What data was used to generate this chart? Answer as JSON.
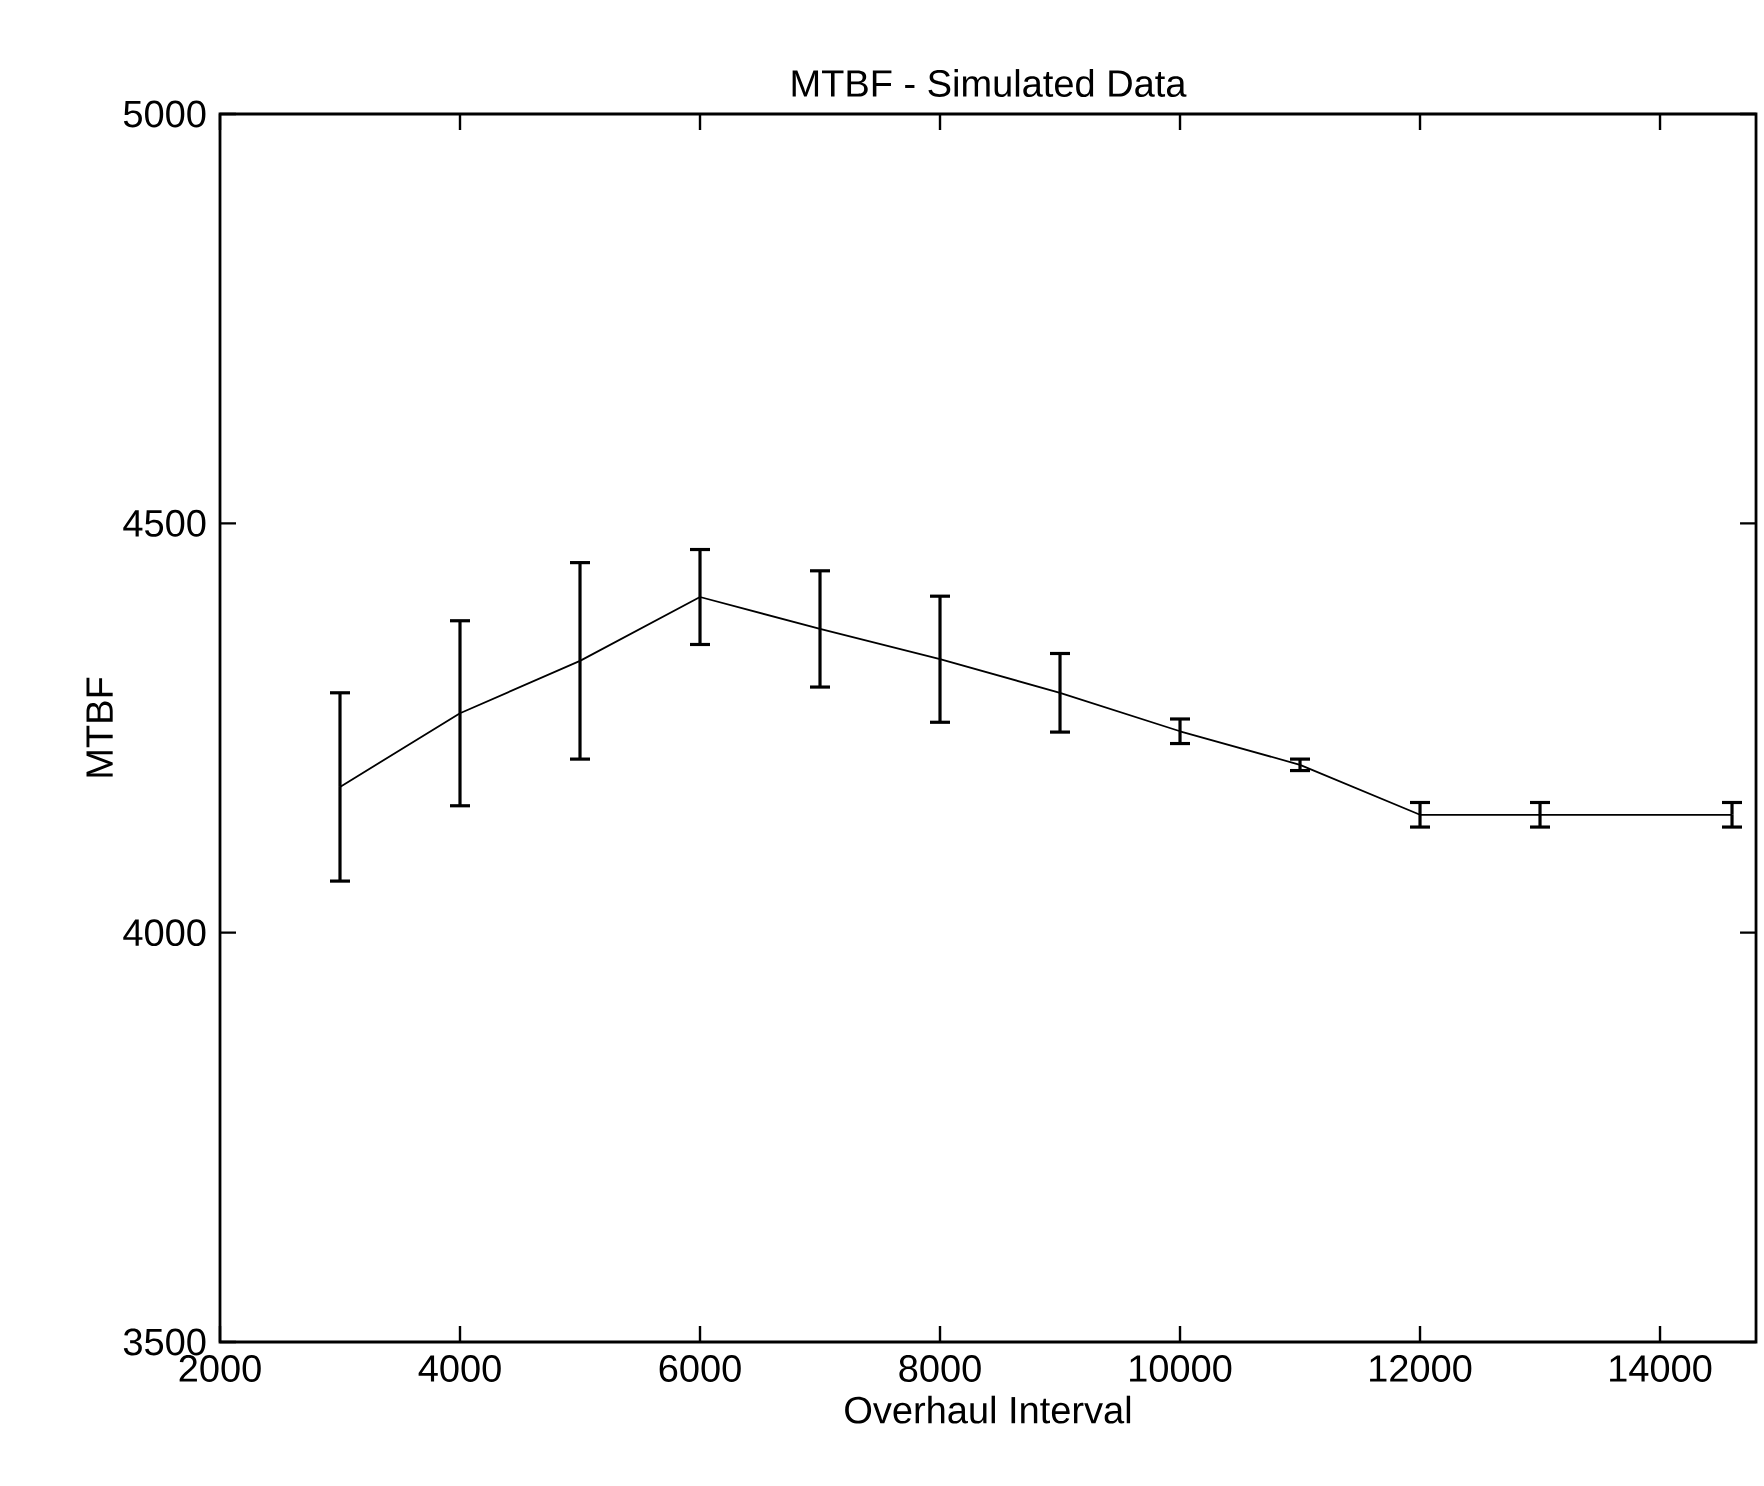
{
  "chart_data": {
    "type": "line",
    "title": "MTBF - Simulated Data",
    "xlabel": "Overhaul Interval",
    "ylabel": "MTBF",
    "x": [
      3000,
      4000,
      5000,
      6000,
      7000,
      8000,
      9000,
      10000,
      11000,
      12000,
      13000,
      14600
    ],
    "series": [
      {
        "color": "#000000",
        "values": [
          4178,
          4268,
          4332,
          4410,
          4371,
          4334,
          4293,
          4246,
          4205,
          4144,
          4144,
          4144
        ],
        "errors": [
          115,
          113,
          120,
          58,
          71,
          77,
          48,
          15,
          7,
          15,
          15,
          15
        ]
      }
    ],
    "xlim": [
      2000,
      14800
    ],
    "ylim": [
      3500,
      5000
    ],
    "xticks": [
      2000,
      4000,
      6000,
      8000,
      10000,
      12000,
      14000
    ],
    "yticks": [
      3500,
      4000,
      4500,
      5000
    ],
    "grid": false,
    "marker": "none",
    "line_style": "solid"
  }
}
